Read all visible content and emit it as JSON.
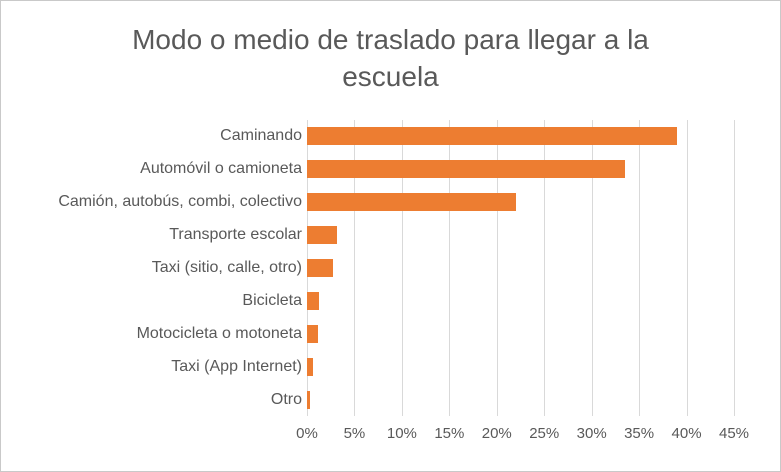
{
  "colors": {
    "bar": "#ed7d31",
    "text": "#595959",
    "gridline": "#d9d9d9",
    "frame_border": "#c9c9c9",
    "background": "#ffffff"
  },
  "chart_data": {
    "type": "bar",
    "orientation": "horizontal",
    "title": "Modo o medio de traslado para llegar a la escuela",
    "categories": [
      "Caminando",
      "Automóvil o camioneta",
      "Camión, autobús, combi, colectivo",
      "Transporte escolar",
      "Taxi (sitio, calle, otro)",
      "Bicicleta",
      "Motocicleta o motoneta",
      "Taxi (App Internet)",
      "Otro"
    ],
    "values": [
      39,
      33.5,
      22,
      3.2,
      2.7,
      1.3,
      1.2,
      0.6,
      0.3
    ],
    "value_unit": "%",
    "xlabel": "",
    "ylabel": "",
    "x_axis": {
      "min": 0,
      "max": 45,
      "step": 5,
      "tick_labels": [
        "0%",
        "5%",
        "10%",
        "15%",
        "20%",
        "25%",
        "30%",
        "35%",
        "40%",
        "45%"
      ]
    },
    "grid": true,
    "legend": false
  }
}
